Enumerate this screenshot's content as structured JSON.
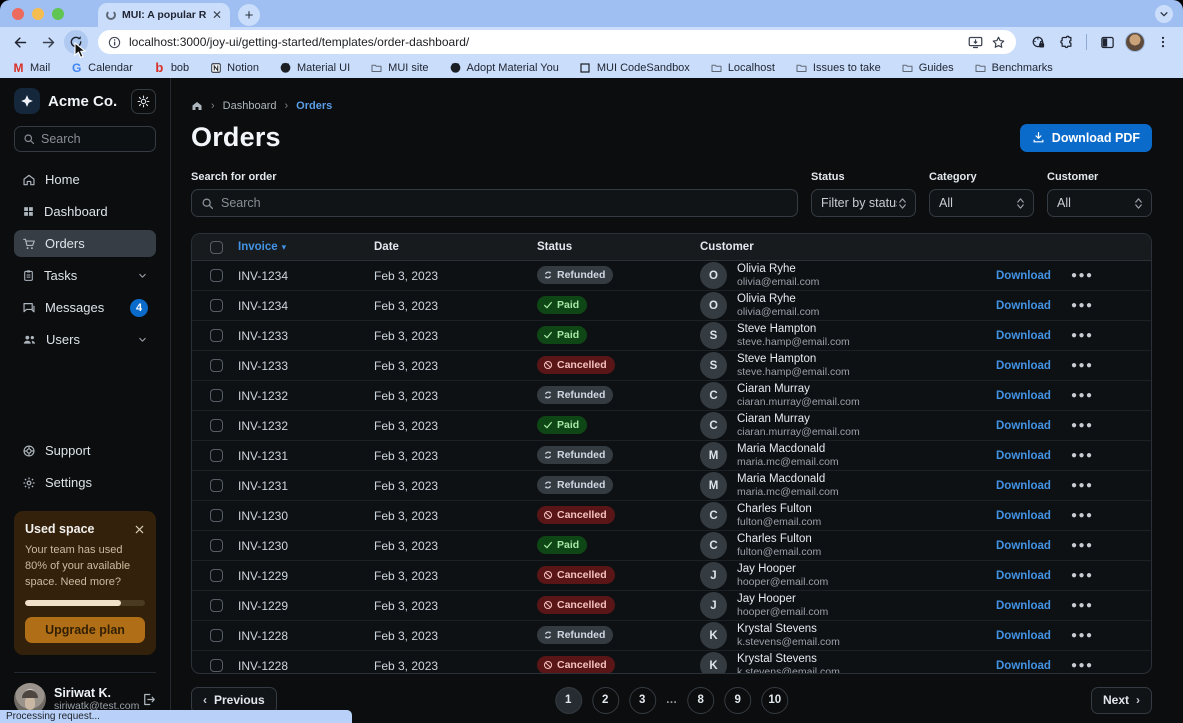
{
  "browser": {
    "tab_title": "MUI: A popular React UI fram",
    "url": "localhost:3000/joy-ui/getting-started/templates/order-dashboard/",
    "status_text": "Processing request...",
    "bookmarks": [
      {
        "label": "Mail",
        "icon": "gmail-icon"
      },
      {
        "label": "Calendar",
        "icon": "google-icon"
      },
      {
        "label": "bob",
        "icon": "bob-icon"
      },
      {
        "label": "Notion",
        "icon": "notion-icon"
      },
      {
        "label": "Material UI",
        "icon": "github-icon"
      },
      {
        "label": "MUI site",
        "icon": "folder-icon"
      },
      {
        "label": "Adopt Material You",
        "icon": "github-icon"
      },
      {
        "label": "MUI CodeSandbox",
        "icon": "codesandbox-icon"
      },
      {
        "label": "Localhost",
        "icon": "folder-icon"
      },
      {
        "label": "Issues to take",
        "icon": "folder-icon"
      },
      {
        "label": "Guides",
        "icon": "folder-icon"
      },
      {
        "label": "Benchmarks",
        "icon": "folder-icon"
      }
    ]
  },
  "sidebar": {
    "brand": "Acme Co.",
    "search_placeholder": "Search",
    "nav": [
      {
        "label": "Home",
        "icon": "home-icon",
        "active": false
      },
      {
        "label": "Dashboard",
        "icon": "dashboard-icon",
        "active": false
      },
      {
        "label": "Orders",
        "icon": "cart-icon",
        "active": true
      },
      {
        "label": "Tasks",
        "icon": "tasks-icon",
        "active": false,
        "chevron": true
      },
      {
        "label": "Messages",
        "icon": "messages-icon",
        "active": false,
        "badge": "4"
      },
      {
        "label": "Users",
        "icon": "users-icon",
        "active": false,
        "chevron": true
      }
    ],
    "footer_nav": [
      {
        "label": "Support",
        "icon": "support-icon"
      },
      {
        "label": "Settings",
        "icon": "settings-icon"
      }
    ],
    "used_space": {
      "title": "Used space",
      "body": "Your team has used 80% of your available space. Need more?",
      "percent": 80,
      "button_label": "Upgrade plan"
    },
    "user": {
      "name": "Siriwat K.",
      "email": "siriwatk@test.com"
    }
  },
  "header": {
    "breadcrumbs": [
      "Dashboard",
      "Orders"
    ],
    "title": "Orders",
    "download_button": "Download PDF"
  },
  "filters": {
    "search_label": "Search for order",
    "search_placeholder": "Search",
    "selects": [
      {
        "label": "Status",
        "value": "Filter by status"
      },
      {
        "label": "Category",
        "value": "All"
      },
      {
        "label": "Customer",
        "value": "All"
      }
    ]
  },
  "table": {
    "columns": [
      "Invoice",
      "Date",
      "Status",
      "Customer"
    ],
    "download_label": "Download",
    "rows": [
      {
        "invoice": "INV-1234",
        "date": "Feb 3, 2023",
        "status": "Refunded",
        "status_kind": "neutral",
        "status_icon": "autorenew-icon",
        "initial": "O",
        "name": "Olivia Ryhe",
        "email": "olivia@email.com"
      },
      {
        "invoice": "INV-1234",
        "date": "Feb 3, 2023",
        "status": "Paid",
        "status_kind": "success",
        "status_icon": "check-icon",
        "initial": "O",
        "name": "Olivia Ryhe",
        "email": "olivia@email.com"
      },
      {
        "invoice": "INV-1233",
        "date": "Feb 3, 2023",
        "status": "Paid",
        "status_kind": "success",
        "status_icon": "check-icon",
        "initial": "S",
        "name": "Steve Hampton",
        "email": "steve.hamp@email.com"
      },
      {
        "invoice": "INV-1233",
        "date": "Feb 3, 2023",
        "status": "Cancelled",
        "status_kind": "danger",
        "status_icon": "block-icon",
        "initial": "S",
        "name": "Steve Hampton",
        "email": "steve.hamp@email.com"
      },
      {
        "invoice": "INV-1232",
        "date": "Feb 3, 2023",
        "status": "Refunded",
        "status_kind": "neutral",
        "status_icon": "autorenew-icon",
        "initial": "C",
        "name": "Ciaran Murray",
        "email": "ciaran.murray@email.com"
      },
      {
        "invoice": "INV-1232",
        "date": "Feb 3, 2023",
        "status": "Paid",
        "status_kind": "success",
        "status_icon": "check-icon",
        "initial": "C",
        "name": "Ciaran Murray",
        "email": "ciaran.murray@email.com"
      },
      {
        "invoice": "INV-1231",
        "date": "Feb 3, 2023",
        "status": "Refunded",
        "status_kind": "neutral",
        "status_icon": "autorenew-icon",
        "initial": "M",
        "name": "Maria Macdonald",
        "email": "maria.mc@email.com"
      },
      {
        "invoice": "INV-1231",
        "date": "Feb 3, 2023",
        "status": "Refunded",
        "status_kind": "neutral",
        "status_icon": "autorenew-icon",
        "initial": "M",
        "name": "Maria Macdonald",
        "email": "maria.mc@email.com"
      },
      {
        "invoice": "INV-1230",
        "date": "Feb 3, 2023",
        "status": "Cancelled",
        "status_kind": "danger",
        "status_icon": "block-icon",
        "initial": "C",
        "name": "Charles Fulton",
        "email": "fulton@email.com"
      },
      {
        "invoice": "INV-1230",
        "date": "Feb 3, 2023",
        "status": "Paid",
        "status_kind": "success",
        "status_icon": "check-icon",
        "initial": "C",
        "name": "Charles Fulton",
        "email": "fulton@email.com"
      },
      {
        "invoice": "INV-1229",
        "date": "Feb 3, 2023",
        "status": "Cancelled",
        "status_kind": "danger",
        "status_icon": "block-icon",
        "initial": "J",
        "name": "Jay Hooper",
        "email": "hooper@email.com"
      },
      {
        "invoice": "INV-1229",
        "date": "Feb 3, 2023",
        "status": "Cancelled",
        "status_kind": "danger",
        "status_icon": "block-icon",
        "initial": "J",
        "name": "Jay Hooper",
        "email": "hooper@email.com"
      },
      {
        "invoice": "INV-1228",
        "date": "Feb 3, 2023",
        "status": "Refunded",
        "status_kind": "neutral",
        "status_icon": "autorenew-icon",
        "initial": "K",
        "name": "Krystal Stevens",
        "email": "k.stevens@email.com"
      },
      {
        "invoice": "INV-1228",
        "date": "Feb 3, 2023",
        "status": "Cancelled",
        "status_kind": "danger",
        "status_icon": "block-icon",
        "initial": "K",
        "name": "Krystal Stevens",
        "email": "k.stevens@email.com"
      }
    ]
  },
  "pagination": {
    "previous_label": "Previous",
    "next_label": "Next",
    "pages": [
      "1",
      "2",
      "3",
      "…",
      "8",
      "9",
      "10"
    ],
    "current": "1"
  },
  "colors": {
    "primary": "#0B6BCB",
    "link_blue": "#4393E4",
    "success_chip": "#0E4715",
    "danger_chip": "#5A1616",
    "neutral_chip": "#343B41",
    "warning_card": "#33210B"
  }
}
